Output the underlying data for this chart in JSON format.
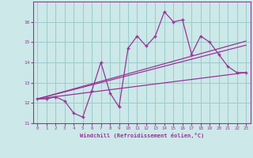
{
  "xlabel": "Windchill (Refroidissement éolien,°C)",
  "background_color": "#cce8e8",
  "grid_color": "#99cccc",
  "line_color": "#993399",
  "xlim": [
    -0.5,
    23.5
  ],
  "ylim": [
    11,
    17
  ],
  "yticks": [
    11,
    12,
    13,
    14,
    15,
    16
  ],
  "xticks": [
    0,
    1,
    2,
    3,
    4,
    5,
    6,
    7,
    8,
    9,
    10,
    11,
    12,
    13,
    14,
    15,
    16,
    17,
    18,
    19,
    20,
    21,
    22,
    23
  ],
  "zigzag_x": [
    0,
    1,
    2,
    3,
    4,
    5,
    6,
    7,
    8,
    9,
    10,
    11,
    12,
    13,
    14,
    15,
    16,
    17,
    18,
    19,
    20,
    21,
    22,
    23
  ],
  "zigzag_y": [
    12.2,
    12.2,
    12.3,
    12.1,
    11.5,
    11.3,
    12.6,
    14.0,
    12.5,
    11.8,
    14.7,
    15.3,
    14.8,
    15.3,
    16.5,
    16.0,
    16.1,
    14.4,
    15.3,
    15.0,
    14.4,
    13.8,
    13.5,
    13.5
  ],
  "line1_x": [
    0,
    23
  ],
  "line1_y": [
    12.2,
    13.5
  ],
  "line2_x": [
    0,
    23
  ],
  "line2_y": [
    12.2,
    14.85
  ],
  "line3_x": [
    0,
    23
  ],
  "line3_y": [
    12.2,
    15.05
  ]
}
